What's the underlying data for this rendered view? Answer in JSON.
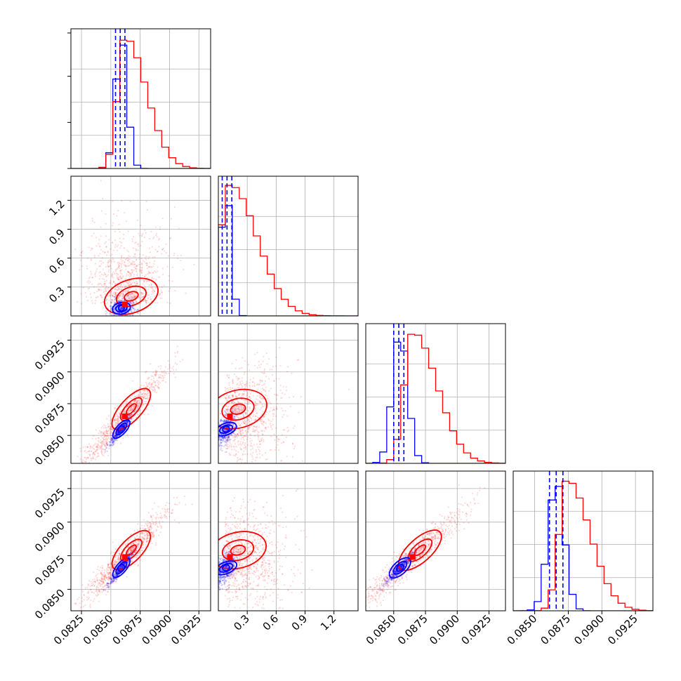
{
  "chart_data": {
    "type": "corner",
    "description_free": true,
    "grid": true,
    "parameters": 4,
    "series": [
      {
        "name": "",
        "color": "#0000ff",
        "role": "narrow posterior"
      },
      {
        "name": "",
        "color": "#ff0000",
        "role": "broad posterior"
      }
    ],
    "axes": {
      "p0": {
        "range": [
          0.0816,
          0.0935
        ],
        "ticks": [
          0.0825,
          0.085,
          0.0875,
          0.09,
          0.0925
        ],
        "tick_labels": [
          "0.0825",
          "0.0850",
          "0.0875",
          "0.0900",
          "0.0925"
        ]
      },
      "p1": {
        "range": [
          0.0,
          1.45
        ],
        "ticks": [
          0.3,
          0.6,
          0.9,
          1.2
        ],
        "tick_labels": [
          "0.3",
          "0.6",
          "0.9",
          "1.2"
        ]
      },
      "p2": {
        "range": [
          0.0828,
          0.0938
        ],
        "ticks": [
          0.085,
          0.0875,
          0.09,
          0.0925
        ],
        "tick_labels": [
          "0.0850",
          "0.0875",
          "0.0900",
          "0.0925"
        ]
      },
      "p3": {
        "range": [
          0.0834,
          0.0938
        ],
        "ticks": [
          0.085,
          0.0875,
          0.09,
          0.0925
        ],
        "tick_labels": [
          "0.0850",
          "0.0875",
          "0.0900",
          "0.0925"
        ]
      }
    },
    "histograms": {
      "p0": {
        "blue_center": 0.0859,
        "blue_width": 0.0005,
        "red_center": 0.0866,
        "red_width": 0.0018,
        "blue_quantiles": [
          0.0854,
          0.0858,
          0.0862
        ],
        "red_peak": 0.0862
      },
      "p1": {
        "blue_center": 0.08,
        "blue_width": 0.05,
        "red_center": 0.3,
        "red_width": 0.28,
        "blue_quantiles": [
          0.04,
          0.09,
          0.14
        ],
        "red_peak": 0.12
      },
      "p2": {
        "blue_center": 0.0855,
        "blue_width": 0.0006,
        "red_center": 0.087,
        "red_width": 0.0019,
        "blue_quantiles": [
          0.085,
          0.0854,
          0.0858
        ],
        "red_peak": 0.0865
      },
      "p3": {
        "blue_center": 0.0866,
        "blue_width": 0.0006,
        "red_center": 0.0879,
        "red_width": 0.0017,
        "blue_quantiles": [
          0.0861,
          0.0866,
          0.0871
        ],
        "red_peak": 0.0874
      }
    }
  }
}
